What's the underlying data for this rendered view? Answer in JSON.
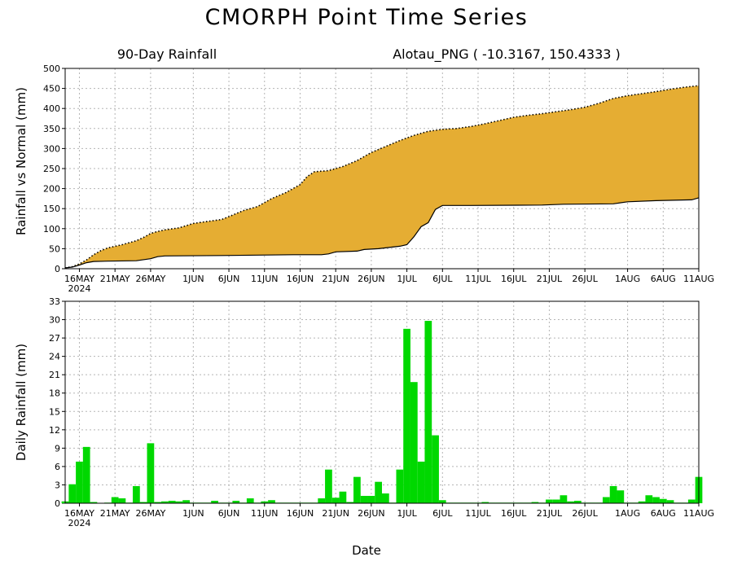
{
  "title": "CMORPH Point Time Series",
  "subtitle_left": "90-Day Rainfall",
  "subtitle_right": "Alotau_PNG ( -10.3167, 150.4333 )",
  "x_axis_label": "Date",
  "year_label": "2024",
  "colors": {
    "fill": "#e5ad33",
    "bars": "#00d800",
    "grid": "#b5b5b5"
  },
  "chart_data": [
    {
      "type": "area",
      "ylabel": "Rainfall vs Normal (mm)",
      "ylim": [
        0,
        500
      ],
      "yticks": [
        0,
        50,
        100,
        150,
        200,
        250,
        300,
        350,
        400,
        450,
        500
      ],
      "xlim": [
        "2024-05-14",
        "2024-08-11"
      ],
      "x_ticks": [
        {
          "date": "2024-05-16",
          "label": "16MAY"
        },
        {
          "date": "2024-05-21",
          "label": "21MAY"
        },
        {
          "date": "2024-05-26",
          "label": "26MAY"
        },
        {
          "date": "2024-06-01",
          "label": "1JUN"
        },
        {
          "date": "2024-06-06",
          "label": "6JUN"
        },
        {
          "date": "2024-06-11",
          "label": "11JUN"
        },
        {
          "date": "2024-06-16",
          "label": "16JUN"
        },
        {
          "date": "2024-06-21",
          "label": "21JUN"
        },
        {
          "date": "2024-06-26",
          "label": "26JUN"
        },
        {
          "date": "2024-07-01",
          "label": "1JUL"
        },
        {
          "date": "2024-07-06",
          "label": "6JUL"
        },
        {
          "date": "2024-07-11",
          "label": "11JUL"
        },
        {
          "date": "2024-07-16",
          "label": "16JUL"
        },
        {
          "date": "2024-07-21",
          "label": "21JUL"
        },
        {
          "date": "2024-07-26",
          "label": "26JUL"
        },
        {
          "date": "2024-08-01",
          "label": "1AUG"
        },
        {
          "date": "2024-08-06",
          "label": "6AUG"
        },
        {
          "date": "2024-08-11",
          "label": "11AUG"
        }
      ],
      "series": [
        {
          "name": "",
          "style": "dotted-line",
          "points": [
            [
              "2024-05-14",
              2
            ],
            [
              "2024-05-15",
              5
            ],
            [
              "2024-05-16",
              12
            ],
            [
              "2024-05-17",
              22
            ],
            [
              "2024-05-18",
              35
            ],
            [
              "2024-05-19",
              45
            ],
            [
              "2024-05-20",
              52
            ],
            [
              "2024-05-22",
              60
            ],
            [
              "2024-05-24",
              70
            ],
            [
              "2024-05-25",
              78
            ],
            [
              "2024-05-26",
              88
            ],
            [
              "2024-05-27",
              93
            ],
            [
              "2024-05-28",
              97
            ],
            [
              "2024-05-30",
              102
            ],
            [
              "2024-06-01",
              113
            ],
            [
              "2024-06-03",
              118
            ],
            [
              "2024-06-05",
              123
            ],
            [
              "2024-06-06",
              130
            ],
            [
              "2024-06-08",
              145
            ],
            [
              "2024-06-10",
              155
            ],
            [
              "2024-06-12",
              175
            ],
            [
              "2024-06-14",
              190
            ],
            [
              "2024-06-16",
              210
            ],
            [
              "2024-06-17",
              230
            ],
            [
              "2024-06-18",
              242
            ],
            [
              "2024-06-20",
              245
            ],
            [
              "2024-06-22",
              255
            ],
            [
              "2024-06-24",
              270
            ],
            [
              "2024-06-26",
              290
            ],
            [
              "2024-06-28",
              305
            ],
            [
              "2024-06-30",
              320
            ],
            [
              "2024-07-02",
              333
            ],
            [
              "2024-07-04",
              343
            ],
            [
              "2024-07-06",
              348
            ],
            [
              "2024-07-08",
              350
            ],
            [
              "2024-07-10",
              355
            ],
            [
              "2024-07-12",
              362
            ],
            [
              "2024-07-14",
              370
            ],
            [
              "2024-07-16",
              378
            ],
            [
              "2024-07-18",
              383
            ],
            [
              "2024-07-20",
              387
            ],
            [
              "2024-07-22",
              392
            ],
            [
              "2024-07-24",
              397
            ],
            [
              "2024-07-26",
              403
            ],
            [
              "2024-07-28",
              413
            ],
            [
              "2024-07-30",
              425
            ],
            [
              "2024-08-01",
              432
            ],
            [
              "2024-08-03",
              437
            ],
            [
              "2024-08-05",
              442
            ],
            [
              "2024-08-07",
              448
            ],
            [
              "2024-08-09",
              453
            ],
            [
              "2024-08-11",
              457
            ]
          ]
        },
        {
          "name": "",
          "style": "solid-line",
          "points": [
            [
              "2024-05-14",
              2
            ],
            [
              "2024-05-15",
              4
            ],
            [
              "2024-05-16",
              9
            ],
            [
              "2024-05-17",
              15
            ],
            [
              "2024-05-18",
              18
            ],
            [
              "2024-05-20",
              19
            ],
            [
              "2024-05-24",
              20
            ],
            [
              "2024-05-26",
              25
            ],
            [
              "2024-05-27",
              30
            ],
            [
              "2024-05-28",
              32
            ],
            [
              "2024-06-05",
              33
            ],
            [
              "2024-06-10",
              34
            ],
            [
              "2024-06-15",
              35
            ],
            [
              "2024-06-19",
              35
            ],
            [
              "2024-06-20",
              37
            ],
            [
              "2024-06-21",
              42
            ],
            [
              "2024-06-24",
              44
            ],
            [
              "2024-06-25",
              48
            ],
            [
              "2024-06-27",
              50
            ],
            [
              "2024-06-29",
              54
            ],
            [
              "2024-06-30",
              56
            ],
            [
              "2024-07-01",
              60
            ],
            [
              "2024-07-02",
              80
            ],
            [
              "2024-07-03",
              105
            ],
            [
              "2024-07-04",
              115
            ],
            [
              "2024-07-05",
              148
            ],
            [
              "2024-07-06",
              158
            ],
            [
              "2024-07-10",
              158
            ],
            [
              "2024-07-20",
              159
            ],
            [
              "2024-07-23",
              161
            ],
            [
              "2024-07-30",
              162
            ],
            [
              "2024-08-01",
              167
            ],
            [
              "2024-08-05",
              170
            ],
            [
              "2024-08-10",
              172
            ],
            [
              "2024-08-11",
              177
            ]
          ]
        }
      ]
    },
    {
      "type": "bar",
      "ylabel": "Daily Rainfall (mm)",
      "ylim": [
        0,
        33
      ],
      "yticks": [
        0,
        3,
        6,
        9,
        12,
        15,
        18,
        21,
        24,
        27,
        30,
        33
      ],
      "xlim": [
        "2024-05-14",
        "2024-08-11"
      ],
      "series": [
        {
          "name": "",
          "points": [
            [
              "2024-05-14",
              0.3
            ],
            [
              "2024-05-15",
              3.1
            ],
            [
              "2024-05-16",
              6.8
            ],
            [
              "2024-05-17",
              9.2
            ],
            [
              "2024-05-18",
              0.2
            ],
            [
              "2024-05-20",
              0.1
            ],
            [
              "2024-05-21",
              1.0
            ],
            [
              "2024-05-22",
              0.8
            ],
            [
              "2024-05-23",
              0.1
            ],
            [
              "2024-05-24",
              2.8
            ],
            [
              "2024-05-25",
              0.2
            ],
            [
              "2024-05-26",
              9.8
            ],
            [
              "2024-05-27",
              0.2
            ],
            [
              "2024-05-28",
              0.3
            ],
            [
              "2024-05-29",
              0.4
            ],
            [
              "2024-05-30",
              0.3
            ],
            [
              "2024-05-31",
              0.5
            ],
            [
              "2024-06-01",
              0.1
            ],
            [
              "2024-06-02",
              0.1
            ],
            [
              "2024-06-03",
              0.1
            ],
            [
              "2024-06-04",
              0.4
            ],
            [
              "2024-06-05",
              0.1
            ],
            [
              "2024-06-06",
              0.1
            ],
            [
              "2024-06-07",
              0.4
            ],
            [
              "2024-06-08",
              0.1
            ],
            [
              "2024-06-09",
              0.8
            ],
            [
              "2024-06-10",
              0.1
            ],
            [
              "2024-06-11",
              0.3
            ],
            [
              "2024-06-12",
              0.5
            ],
            [
              "2024-06-13",
              0.1
            ],
            [
              "2024-06-14",
              0.1
            ],
            [
              "2024-06-15",
              0.1
            ],
            [
              "2024-06-16",
              0.1
            ],
            [
              "2024-06-17",
              0.1
            ],
            [
              "2024-06-18",
              0.1
            ],
            [
              "2024-06-19",
              0.8
            ],
            [
              "2024-06-20",
              5.5
            ],
            [
              "2024-06-21",
              0.9
            ],
            [
              "2024-06-22",
              1.9
            ],
            [
              "2024-06-23",
              0.2
            ],
            [
              "2024-06-24",
              4.3
            ],
            [
              "2024-06-25",
              1.2
            ],
            [
              "2024-06-26",
              1.2
            ],
            [
              "2024-06-27",
              3.5
            ],
            [
              "2024-06-28",
              1.6
            ],
            [
              "2024-06-29",
              0.1
            ],
            [
              "2024-06-30",
              5.5
            ],
            [
              "2024-07-01",
              28.5
            ],
            [
              "2024-07-02",
              19.8
            ],
            [
              "2024-07-03",
              6.8
            ],
            [
              "2024-07-04",
              29.8
            ],
            [
              "2024-07-05",
              11.1
            ],
            [
              "2024-07-06",
              0.5
            ],
            [
              "2024-07-07",
              0.1
            ],
            [
              "2024-07-08",
              0.1
            ],
            [
              "2024-07-09",
              0.1
            ],
            [
              "2024-07-10",
              0.1
            ],
            [
              "2024-07-11",
              0.1
            ],
            [
              "2024-07-12",
              0.2
            ],
            [
              "2024-07-13",
              0.1
            ],
            [
              "2024-07-14",
              0.1
            ],
            [
              "2024-07-15",
              0.1
            ],
            [
              "2024-07-16",
              0.1
            ],
            [
              "2024-07-17",
              0.1
            ],
            [
              "2024-07-18",
              0.1
            ],
            [
              "2024-07-19",
              0.2
            ],
            [
              "2024-07-20",
              0.1
            ],
            [
              "2024-07-21",
              0.6
            ],
            [
              "2024-07-22",
              0.6
            ],
            [
              "2024-07-23",
              1.3
            ],
            [
              "2024-07-24",
              0.3
            ],
            [
              "2024-07-25",
              0.4
            ],
            [
              "2024-07-26",
              0.1
            ],
            [
              "2024-07-27",
              0.1
            ],
            [
              "2024-07-28",
              0.1
            ],
            [
              "2024-07-29",
              1.0
            ],
            [
              "2024-07-30",
              2.8
            ],
            [
              "2024-07-31",
              2.1
            ],
            [
              "2024-08-01",
              0.1
            ],
            [
              "2024-08-02",
              0.1
            ],
            [
              "2024-08-03",
              0.3
            ],
            [
              "2024-08-04",
              1.3
            ],
            [
              "2024-08-05",
              1.0
            ],
            [
              "2024-08-06",
              0.7
            ],
            [
              "2024-08-07",
              0.5
            ],
            [
              "2024-08-08",
              0.1
            ],
            [
              "2024-08-09",
              0.1
            ],
            [
              "2024-08-10",
              0.6
            ],
            [
              "2024-08-11",
              4.3
            ]
          ]
        }
      ]
    }
  ]
}
